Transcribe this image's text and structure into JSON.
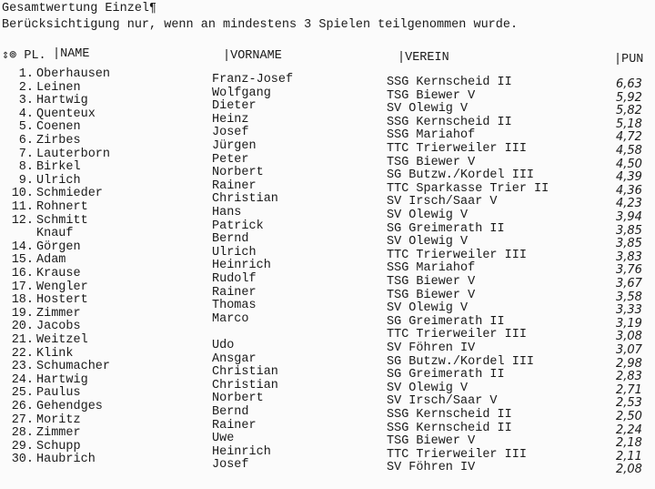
{
  "title": "Gesamtwertung Einzel¶",
  "subtitle": "Berücksichtigung nur, wenn an mindestens 3 Spielen teilgenommen wurde.",
  "headers": {
    "pl": "⇕⊚ PL.",
    "name": "|NAME",
    "vorname": "|VORNAME",
    "verein": "|VEREIN",
    "punkte": "|PUN"
  },
  "rows": [
    {
      "pl": "1.",
      "name": "Oberhausen",
      "vorname": "Franz-Josef",
      "verein": "SSG Kernscheid II",
      "punkte": "6,63"
    },
    {
      "pl": "2.",
      "name": "Leinen",
      "vorname": "Wolfgang",
      "verein": "TSG Biewer V",
      "punkte": "5,92"
    },
    {
      "pl": "3.",
      "name": "Hartwig",
      "vorname": "Dieter",
      "verein": "SV Olewig V",
      "punkte": "5,82"
    },
    {
      "pl": "4.",
      "name": "Quenteux",
      "vorname": "Heinz",
      "verein": "SSG Kernscheid II",
      "punkte": "5,18"
    },
    {
      "pl": "5.",
      "name": "Coenen",
      "vorname": "Josef",
      "verein": "SSG Mariahof",
      "punkte": "4,72"
    },
    {
      "pl": "6.",
      "name": "Zirbes",
      "vorname": "Jürgen",
      "verein": "TTC Trierweiler III",
      "punkte": "4,58"
    },
    {
      "pl": "7.",
      "name": "Lauterborn",
      "vorname": "Peter",
      "verein": "TSG Biewer V",
      "punkte": "4,50"
    },
    {
      "pl": "8.",
      "name": "Birkel",
      "vorname": "Norbert",
      "verein": "SG Butzw./Kordel III",
      "punkte": "4,39"
    },
    {
      "pl": "9.",
      "name": "Ulrich",
      "vorname": "Rainer",
      "verein": "TTC Sparkasse Trier II",
      "punkte": "4,36"
    },
    {
      "pl": "10.",
      "name": "Schmieder",
      "vorname": "Christian",
      "verein": "SV Irsch/Saar V",
      "punkte": "4,23"
    },
    {
      "pl": "11.",
      "name": "Rohnert",
      "vorname": "Hans",
      "verein": "SV Olewig V",
      "punkte": "3,94"
    },
    {
      "pl": "12.",
      "name": "Schmitt",
      "vorname": "Patrick",
      "verein": "SG Greimerath II",
      "punkte": "3,85"
    },
    {
      "pl": "",
      "name": "Knauf",
      "vorname": "Bernd",
      "verein": "SV Olewig V",
      "punkte": "3,85"
    },
    {
      "pl": "14.",
      "name": "Görgen",
      "vorname": "Ulrich",
      "verein": "TTC Trierweiler III",
      "punkte": "3,83"
    },
    {
      "pl": "15.",
      "name": "Adam",
      "vorname": "Heinrich",
      "verein": "SSG Mariahof",
      "punkte": "3,76"
    },
    {
      "pl": "16.",
      "name": "Krause",
      "vorname": "Rudolf",
      "verein": "TSG Biewer V",
      "punkte": "3,67"
    },
    {
      "pl": "17.",
      "name": "Wengler",
      "vorname": "Rainer",
      "verein": "TSG Biewer V",
      "punkte": "3,58"
    },
    {
      "pl": "18.",
      "name": "Hostert",
      "vorname": "Thomas",
      "verein": "SV Olewig V",
      "punkte": "3,33"
    },
    {
      "pl": "19.",
      "name": "Zimmer",
      "vorname": "Marco",
      "verein": "SG Greimerath II",
      "punkte": "3,19"
    },
    {
      "pl": "20.",
      "name": "Jacobs",
      "vorname": "",
      "verein": "TTC Trierweiler III",
      "punkte": "3,08"
    },
    {
      "pl": "21.",
      "name": "Weitzel",
      "vorname": "Udo",
      "verein": "SV Föhren IV",
      "punkte": "3,07"
    },
    {
      "pl": "22.",
      "name": "Klink",
      "vorname": "Ansgar",
      "verein": "SG Butzw./Kordel III",
      "punkte": "2,98"
    },
    {
      "pl": "23.",
      "name": "Schumacher",
      "vorname": "Christian",
      "verein": "SG Greimerath II",
      "punkte": "2,83"
    },
    {
      "pl": "24.",
      "name": "Hartwig",
      "vorname": "Christian",
      "verein": "SV Olewig V",
      "punkte": "2,71"
    },
    {
      "pl": "25.",
      "name": "Paulus",
      "vorname": "Norbert",
      "verein": "SV Irsch/Saar V",
      "punkte": "2,53"
    },
    {
      "pl": "26.",
      "name": "Gehendges",
      "vorname": "Bernd",
      "verein": "SSG Kernscheid II",
      "punkte": "2,50"
    },
    {
      "pl": "27.",
      "name": "Moritz",
      "vorname": "Rainer",
      "verein": "SSG Kernscheid II",
      "punkte": "2,24"
    },
    {
      "pl": "28.",
      "name": "Zimmer",
      "vorname": "Uwe",
      "verein": "TSG Biewer V",
      "punkte": "2,18"
    },
    {
      "pl": "29.",
      "name": "Schupp",
      "vorname": "Heinrich",
      "verein": "TTC Trierweiler III",
      "punkte": "2,11"
    },
    {
      "pl": "30.",
      "name": "Haubrich",
      "vorname": "Josef",
      "verein": "SV Föhren IV",
      "punkte": "2,08"
    }
  ]
}
